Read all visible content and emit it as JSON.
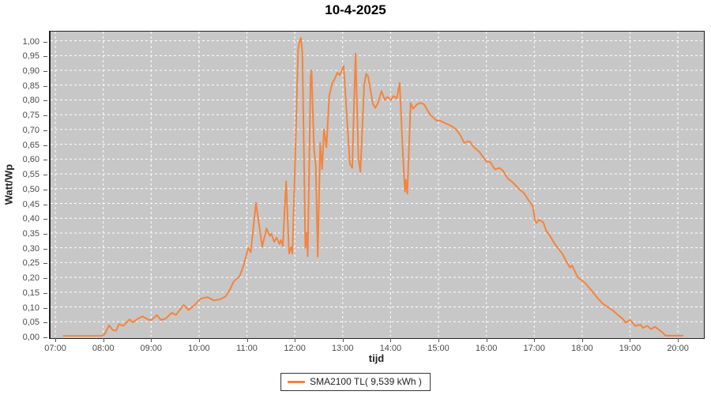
{
  "page": {
    "title": "10-4-2025",
    "background": "#ffffff"
  },
  "chart_data": {
    "type": "line",
    "title": "10-4-2025",
    "xlabel": "tijd",
    "ylabel": "Watt/Wp",
    "plot_bg": "#c7c7c7",
    "grid": {
      "color": "#ffffff",
      "style": "dashed",
      "on": true
    },
    "xlim_hours": [
      6.9,
      20.51
    ],
    "ylim": [
      0,
      1.031
    ],
    "x_ticks": [
      {
        "h": 7,
        "label": "07:00"
      },
      {
        "h": 8,
        "label": "08:00"
      },
      {
        "h": 9,
        "label": "09:00"
      },
      {
        "h": 10,
        "label": "10:00"
      },
      {
        "h": 11,
        "label": "11:00"
      },
      {
        "h": 12,
        "label": "12:00"
      },
      {
        "h": 13,
        "label": "13:00"
      },
      {
        "h": 14,
        "label": "14:00"
      },
      {
        "h": 15,
        "label": "15:00"
      },
      {
        "h": 16,
        "label": "16:00"
      },
      {
        "h": 17,
        "label": "17:00"
      },
      {
        "h": 18,
        "label": "18:00"
      },
      {
        "h": 19,
        "label": "19:00"
      },
      {
        "h": 20,
        "label": "20:00"
      }
    ],
    "y_ticks": [
      {
        "v": 0.0,
        "label": "0,00"
      },
      {
        "v": 0.05,
        "label": "0,05"
      },
      {
        "v": 0.1,
        "label": "0,10"
      },
      {
        "v": 0.15,
        "label": "0,15"
      },
      {
        "v": 0.2,
        "label": "0,20"
      },
      {
        "v": 0.25,
        "label": "0,25"
      },
      {
        "v": 0.3,
        "label": "0,30"
      },
      {
        "v": 0.35,
        "label": "0,35"
      },
      {
        "v": 0.4,
        "label": "0,40"
      },
      {
        "v": 0.45,
        "label": "0,45"
      },
      {
        "v": 0.5,
        "label": "0,50"
      },
      {
        "v": 0.55,
        "label": "0,55"
      },
      {
        "v": 0.6,
        "label": "0,60"
      },
      {
        "v": 0.65,
        "label": "0,65"
      },
      {
        "v": 0.7,
        "label": "0,70"
      },
      {
        "v": 0.75,
        "label": "0,75"
      },
      {
        "v": 0.8,
        "label": "0,80"
      },
      {
        "v": 0.85,
        "label": "0,85"
      },
      {
        "v": 0.9,
        "label": "0,90"
      },
      {
        "v": 0.95,
        "label": "0,95"
      },
      {
        "v": 1.0,
        "label": "1,00"
      }
    ],
    "legend": {
      "position": "bottom-center",
      "entries": [
        {
          "label": "SMA2100 TL( 9,539 kWh )",
          "color": "#f5843c"
        }
      ]
    },
    "series": [
      {
        "name": "SMA2100 TL( 9,539 kWh )",
        "color": "#f5843c",
        "points": [
          [
            7.17,
            0.002
          ],
          [
            7.5,
            0.002
          ],
          [
            7.97,
            0.002
          ],
          [
            8.03,
            0.008
          ],
          [
            8.12,
            0.038
          ],
          [
            8.2,
            0.022
          ],
          [
            8.27,
            0.02
          ],
          [
            8.33,
            0.042
          ],
          [
            8.42,
            0.036
          ],
          [
            8.5,
            0.05
          ],
          [
            8.55,
            0.058
          ],
          [
            8.62,
            0.048
          ],
          [
            8.72,
            0.06
          ],
          [
            8.82,
            0.068
          ],
          [
            8.92,
            0.059
          ],
          [
            9.0,
            0.055
          ],
          [
            9.12,
            0.073
          ],
          [
            9.2,
            0.056
          ],
          [
            9.3,
            0.06
          ],
          [
            9.43,
            0.08
          ],
          [
            9.52,
            0.073
          ],
          [
            9.68,
            0.107
          ],
          [
            9.78,
            0.09
          ],
          [
            9.9,
            0.105
          ],
          [
            10.03,
            0.128
          ],
          [
            10.18,
            0.133
          ],
          [
            10.31,
            0.122
          ],
          [
            10.44,
            0.126
          ],
          [
            10.55,
            0.135
          ],
          [
            10.65,
            0.16
          ],
          [
            10.72,
            0.185
          ],
          [
            10.85,
            0.205
          ],
          [
            10.93,
            0.24
          ],
          [
            10.98,
            0.27
          ],
          [
            11.03,
            0.3
          ],
          [
            11.08,
            0.285
          ],
          [
            11.19,
            0.452
          ],
          [
            11.32,
            0.304
          ],
          [
            11.41,
            0.366
          ],
          [
            11.48,
            0.34
          ],
          [
            11.51,
            0.348
          ],
          [
            11.57,
            0.32
          ],
          [
            11.62,
            0.335
          ],
          [
            11.68,
            0.313
          ],
          [
            11.71,
            0.326
          ],
          [
            11.75,
            0.306
          ],
          [
            11.82,
            0.525
          ],
          [
            11.88,
            0.281
          ],
          [
            11.92,
            0.302
          ],
          [
            11.95,
            0.28
          ],
          [
            12.0,
            0.55
          ],
          [
            12.07,
            0.97
          ],
          [
            12.1,
            1.0
          ],
          [
            12.13,
            1.01
          ],
          [
            12.16,
            0.956
          ],
          [
            12.22,
            0.3
          ],
          [
            12.25,
            0.35
          ],
          [
            12.27,
            0.272
          ],
          [
            12.33,
            0.88
          ],
          [
            12.35,
            0.9
          ],
          [
            12.4,
            0.637
          ],
          [
            12.44,
            0.575
          ],
          [
            12.48,
            0.27
          ],
          [
            12.53,
            0.655
          ],
          [
            12.57,
            0.566
          ],
          [
            12.61,
            0.7
          ],
          [
            12.66,
            0.64
          ],
          [
            12.72,
            0.814
          ],
          [
            12.78,
            0.856
          ],
          [
            12.83,
            0.87
          ],
          [
            12.89,
            0.892
          ],
          [
            12.94,
            0.884
          ],
          [
            13.02,
            0.915
          ],
          [
            13.15,
            0.584
          ],
          [
            13.2,
            0.57
          ],
          [
            13.24,
            0.8
          ],
          [
            13.27,
            0.957
          ],
          [
            13.33,
            0.6
          ],
          [
            13.37,
            0.557
          ],
          [
            13.45,
            0.85
          ],
          [
            13.49,
            0.889
          ],
          [
            13.53,
            0.88
          ],
          [
            13.63,
            0.787
          ],
          [
            13.68,
            0.773
          ],
          [
            13.74,
            0.79
          ],
          [
            13.81,
            0.83
          ],
          [
            13.88,
            0.8
          ],
          [
            13.93,
            0.81
          ],
          [
            14.01,
            0.8
          ],
          [
            14.06,
            0.813
          ],
          [
            14.13,
            0.805
          ],
          [
            14.19,
            0.858
          ],
          [
            14.26,
            0.61
          ],
          [
            14.3,
            0.49
          ],
          [
            14.32,
            0.53
          ],
          [
            14.35,
            0.483
          ],
          [
            14.42,
            0.79
          ],
          [
            14.47,
            0.77
          ],
          [
            14.55,
            0.785
          ],
          [
            14.63,
            0.79
          ],
          [
            14.7,
            0.785
          ],
          [
            14.77,
            0.765
          ],
          [
            14.83,
            0.75
          ],
          [
            14.96,
            0.73
          ],
          [
            15.03,
            0.73
          ],
          [
            15.16,
            0.72
          ],
          [
            15.29,
            0.71
          ],
          [
            15.37,
            0.7
          ],
          [
            15.46,
            0.68
          ],
          [
            15.54,
            0.654
          ],
          [
            15.61,
            0.66
          ],
          [
            15.66,
            0.658
          ],
          [
            15.74,
            0.64
          ],
          [
            15.85,
            0.625
          ],
          [
            16.0,
            0.592
          ],
          [
            16.08,
            0.59
          ],
          [
            16.18,
            0.565
          ],
          [
            16.28,
            0.57
          ],
          [
            16.35,
            0.56
          ],
          [
            16.45,
            0.534
          ],
          [
            16.56,
            0.52
          ],
          [
            16.68,
            0.499
          ],
          [
            16.78,
            0.486
          ],
          [
            16.89,
            0.459
          ],
          [
            16.97,
            0.441
          ],
          [
            17.02,
            0.39
          ],
          [
            17.05,
            0.384
          ],
          [
            17.1,
            0.395
          ],
          [
            17.19,
            0.386
          ],
          [
            17.25,
            0.357
          ],
          [
            17.3,
            0.348
          ],
          [
            17.43,
            0.313
          ],
          [
            17.6,
            0.277
          ],
          [
            17.66,
            0.257
          ],
          [
            17.75,
            0.233
          ],
          [
            17.79,
            0.24
          ],
          [
            17.91,
            0.2
          ],
          [
            18.01,
            0.188
          ],
          [
            18.07,
            0.18
          ],
          [
            18.21,
            0.153
          ],
          [
            18.32,
            0.131
          ],
          [
            18.42,
            0.113
          ],
          [
            18.53,
            0.1
          ],
          [
            18.65,
            0.087
          ],
          [
            18.75,
            0.073
          ],
          [
            18.86,
            0.058
          ],
          [
            18.91,
            0.047
          ],
          [
            19.0,
            0.056
          ],
          [
            19.11,
            0.036
          ],
          [
            19.22,
            0.04
          ],
          [
            19.27,
            0.029
          ],
          [
            19.36,
            0.036
          ],
          [
            19.44,
            0.025
          ],
          [
            19.52,
            0.033
          ],
          [
            19.69,
            0.012
          ],
          [
            19.74,
            0.003
          ],
          [
            20.1,
            0.003
          ]
        ]
      }
    ]
  }
}
